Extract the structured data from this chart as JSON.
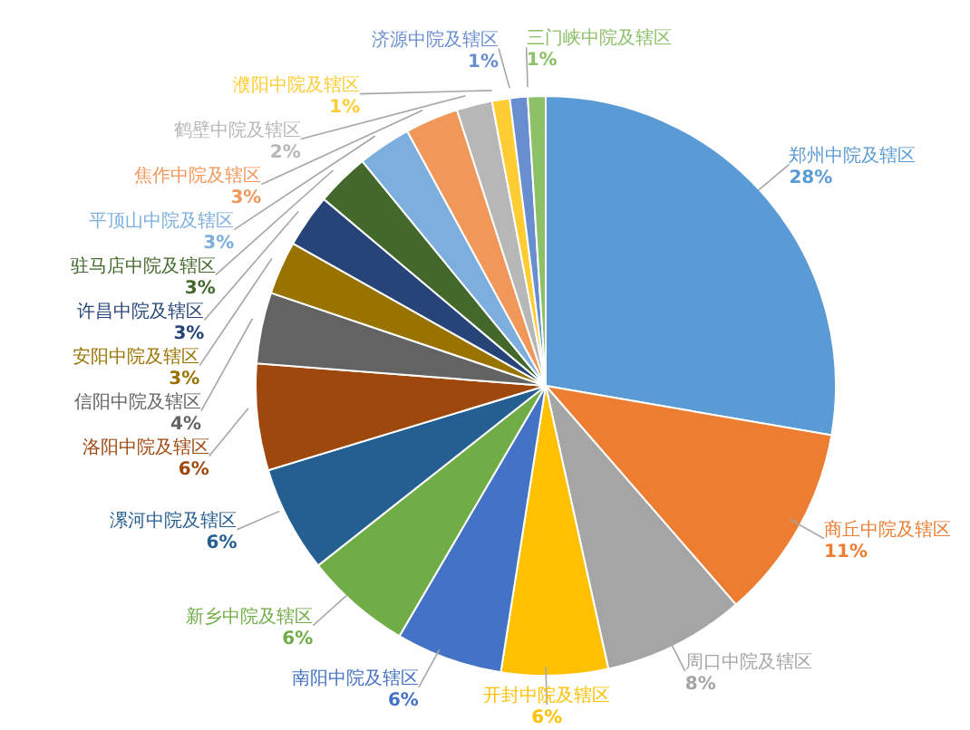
{
  "chart_data": {
    "type": "pie",
    "categories": [
      "郑州中院及辖区",
      "商丘中院及辖区",
      "周口中院及辖区",
      "开封中院及辖区",
      "南阳中院及辖区",
      "新乡中院及辖区",
      "漯河中院及辖区",
      "洛阳中院及辖区",
      "信阳中院及辖区",
      "安阳中院及辖区",
      "许昌中院及辖区",
      "驻马店中院及辖区",
      "平顶山中院及辖区",
      "焦作中院及辖区",
      "鹤壁中院及辖区",
      "濮阳中院及辖区",
      "济源中院及辖区",
      "三门峡中院及辖区"
    ],
    "values": [
      28,
      11,
      8,
      6,
      6,
      6,
      6,
      6,
      4,
      3,
      3,
      3,
      3,
      3,
      2,
      1,
      1,
      1
    ],
    "colors": [
      "#5b9bd5",
      "#ed7d31",
      "#a5a5a5",
      "#ffc000",
      "#4472c4",
      "#70ad47",
      "#255e91",
      "#9e480e",
      "#636363",
      "#997300",
      "#264478",
      "#43682b",
      "#7cafdd",
      "#f1975a",
      "#b7b7b7",
      "#ffcd33",
      "#698ed0",
      "#8cc168"
    ],
    "value_labels": [
      "28%",
      "11%",
      "8%",
      "6%",
      "6%",
      "6%",
      "6%",
      "6%",
      "4%",
      "3%",
      "3%",
      "3%",
      "3%",
      "3%",
      "2%",
      "1%",
      "1%",
      "1%"
    ]
  }
}
